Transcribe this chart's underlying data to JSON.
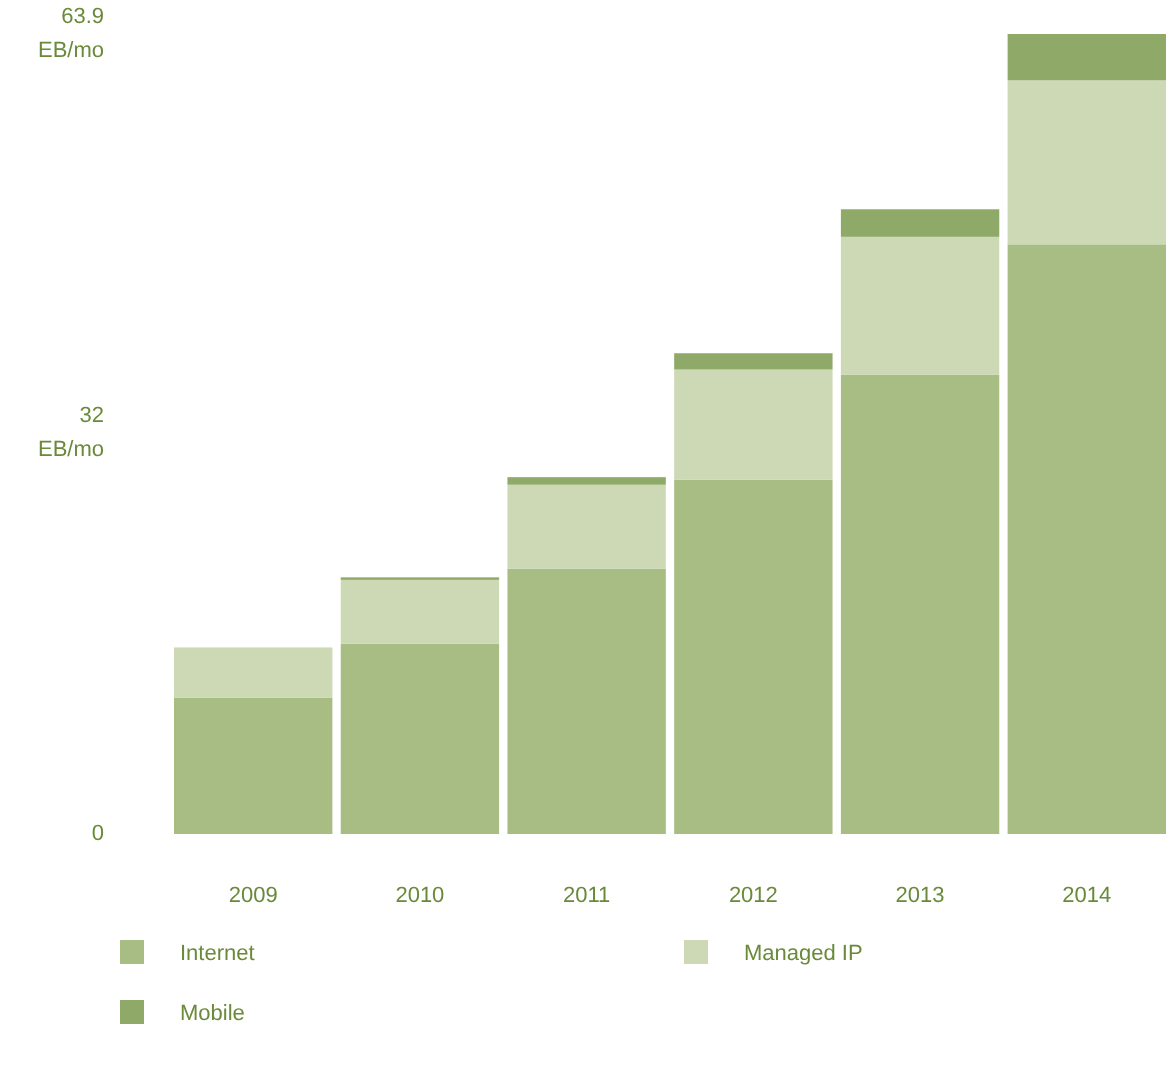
{
  "chart_data": {
    "type": "bar",
    "stacked": true,
    "categories": [
      "2009",
      "2010",
      "2011",
      "2012",
      "2013",
      "2014"
    ],
    "series": [
      {
        "name": "Internet",
        "color": "#a8bd84",
        "values": [
          10.9,
          15.2,
          21.2,
          28.3,
          36.7,
          47.1
        ]
      },
      {
        "name": "Managed IP",
        "color": "#ccd9b4",
        "values": [
          4.0,
          5.1,
          6.7,
          8.8,
          11.0,
          13.1
        ]
      },
      {
        "name": "Mobile",
        "color": "#8ea968",
        "values": [
          0,
          0.2,
          0.6,
          1.3,
          2.2,
          3.7
        ]
      }
    ],
    "ylim": [
      0,
      63.9
    ],
    "yticks": [
      0,
      {
        "value": 32,
        "label": "32 EB/mo"
      },
      {
        "value": 63.9,
        "label": "63.9 EB/mo"
      }
    ],
    "grid": false,
    "legend": "bottom"
  }
}
